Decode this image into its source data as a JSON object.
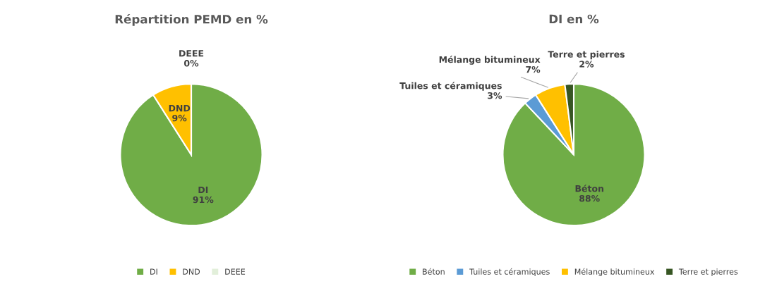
{
  "chart_data": [
    {
      "type": "pie",
      "title": "Répartition PEMD en %",
      "categories": [
        "DI",
        "DND",
        "DEEE"
      ],
      "values": [
        91,
        9,
        0
      ],
      "colors": [
        "#70ad47",
        "#ffc000",
        "#e2efda"
      ],
      "value_labels": [
        "91%",
        "9%",
        "0%"
      ],
      "legend": "bottom"
    },
    {
      "type": "pie",
      "title": "DI en %",
      "categories": [
        "Béton",
        "Tuiles et céramiques",
        "Mélange bitumineux",
        "Terre et pierres"
      ],
      "values": [
        88,
        3,
        7,
        2
      ],
      "colors": [
        "#70ad47",
        "#5b9bd5",
        "#ffc000",
        "#375623"
      ],
      "value_labels": [
        "88%",
        "3%",
        "7%",
        "2%"
      ],
      "legend": "bottom"
    }
  ]
}
